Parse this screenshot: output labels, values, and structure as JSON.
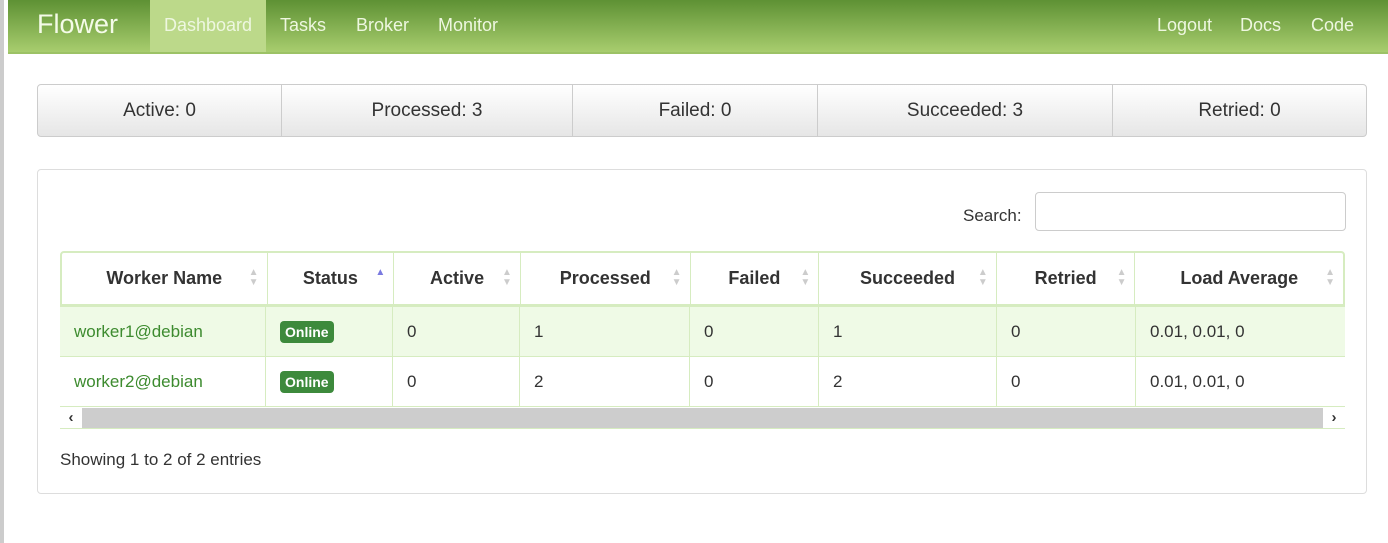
{
  "nav": {
    "brand": "Flower",
    "items": [
      "Dashboard",
      "Tasks",
      "Broker",
      "Monitor"
    ],
    "right": [
      "Logout",
      "Docs",
      "Code"
    ],
    "active": "Dashboard"
  },
  "stats": [
    "Active: 0",
    "Processed: 3",
    "Failed: 0",
    "Succeeded: 3",
    "Retried: 0"
  ],
  "search": {
    "label": "Search:",
    "value": ""
  },
  "table": {
    "headers": [
      "Worker Name",
      "Status",
      "Active",
      "Processed",
      "Failed",
      "Succeeded",
      "Retried",
      "Load Average"
    ],
    "sorted_column": "Status",
    "rows": [
      [
        "worker1@debian",
        "Online",
        "0",
        "1",
        "0",
        "1",
        "0",
        "0.01, 0.01, 0"
      ],
      [
        "worker2@debian",
        "Online",
        "0",
        "2",
        "0",
        "2",
        "0",
        "0.01, 0.01, 0"
      ]
    ]
  },
  "info": "Showing 1 to 2 of 2 entries"
}
